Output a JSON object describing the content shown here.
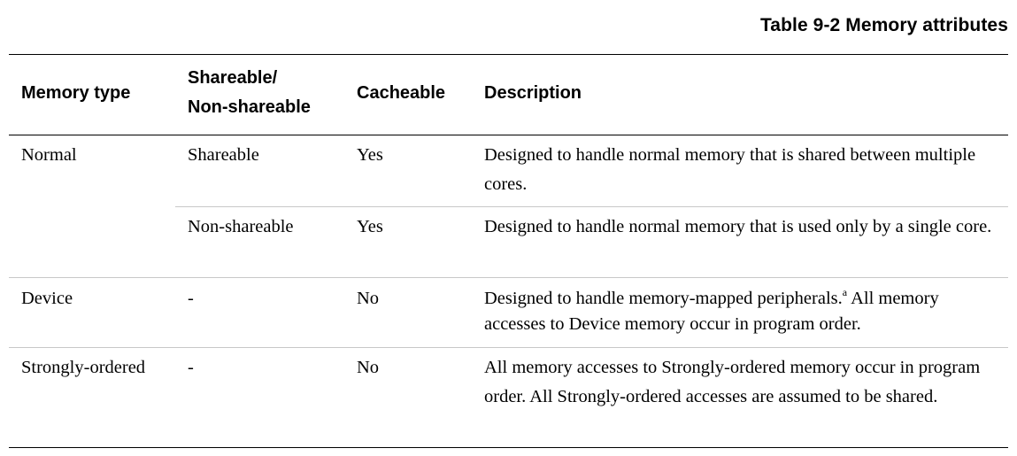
{
  "caption": "Table 9-2 Memory attributes",
  "headers": {
    "memory_type": "Memory type",
    "shareable_line1": "Shareable/",
    "shareable_line2": "Non-shareable",
    "cacheable": "Cacheable",
    "description": "Description"
  },
  "rows": [
    {
      "memory_type": "Normal",
      "shareable": "Shareable",
      "cacheable": "Yes",
      "description": "Designed to handle normal memory that is shared between multiple cores."
    },
    {
      "memory_type": "",
      "shareable": "Non-shareable",
      "cacheable": "Yes",
      "description": "Designed to handle normal memory that is used only by a single core."
    },
    {
      "memory_type": "Device",
      "shareable": "-",
      "cacheable": "No",
      "description_part1": "Designed to handle memory-mapped peripherals.",
      "footnote_mark": "a",
      "description_part2": " All memory accesses to Device memory occur in program order."
    },
    {
      "memory_type": "Strongly-ordered",
      "shareable": "-",
      "cacheable": "No",
      "description": "All memory accesses to Strongly-ordered memory occur in program order. All Strongly-ordered accesses are assumed to be shared."
    }
  ]
}
